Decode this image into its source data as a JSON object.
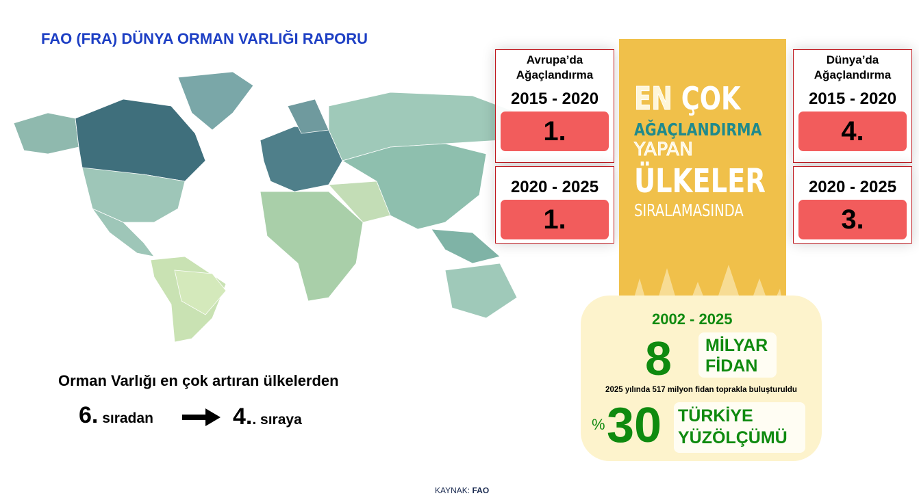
{
  "title": "FAO (FRA) DÜNYA ORMAN VARLIĞI RAPORU",
  "europe": {
    "label": "Avrupa’da Ağaçlandırma",
    "periods": [
      {
        "years": "2015 - 2020",
        "rank": "1."
      },
      {
        "years": "2020 - 2025",
        "rank": "1."
      }
    ]
  },
  "world": {
    "label": "Dünya’da Ağaçlandırma",
    "periods": [
      {
        "years": "2015 - 2020",
        "rank": "4."
      },
      {
        "years": "2020 - 2025",
        "rank": "3."
      }
    ]
  },
  "banner": {
    "line1a": "EN",
    "line1b": "ÇOK",
    "line2": "AĞAÇLANDIRMA",
    "line3": "YAPAN",
    "line4": "ÜLKELER",
    "line5": "SIRALAMASINDA"
  },
  "stats": {
    "period": "2002 - 2025",
    "big_number": "8",
    "big_unit_1": "MİLYAR",
    "big_unit_2": "FİDAN",
    "note": "2025 yılında 517 milyon fidan toprakla buluşturuldu",
    "percent_sign": "%",
    "percent": "30",
    "pct_label_1": "TÜRKİYE",
    "pct_label_2": "YÜZÖLÇÜMÜ"
  },
  "ranking": {
    "text": "Orman Varlığı en çok artıran ülkelerden",
    "from_num": "6.",
    "from_txt": " sıradan",
    "to_num": "4.",
    "to_txt": ". sıraya"
  },
  "source": {
    "label": "KAYNAK:",
    "value": "FAO"
  },
  "colors": {
    "title": "#1d3fc4",
    "rank_box": "#f25c5c",
    "banner": "#f0c04a",
    "panel": "#fdf3cc",
    "green": "#0f8a0f"
  }
}
